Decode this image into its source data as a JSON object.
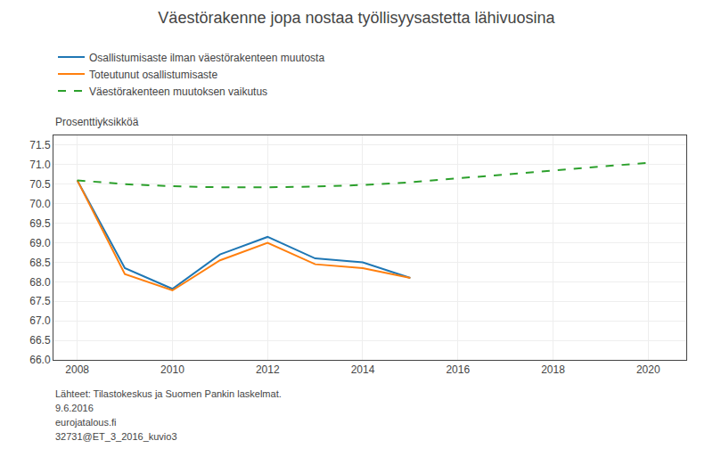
{
  "chart_data": {
    "type": "line",
    "title": "Väestörakenne jopa nostaa työllisyysastetta lähivuosina",
    "y_label": "Prosenttiyksikköä",
    "x": [
      2008,
      2009,
      2010,
      2011,
      2012,
      2013,
      2014,
      2015,
      2016,
      2017,
      2018,
      2019,
      2020
    ],
    "series": [
      {
        "name": "Osallistumisaste ilman väestörakenteen muutosta",
        "line_style": "solid",
        "values": [
          70.6,
          68.35,
          67.82,
          68.7,
          69.15,
          68.6,
          68.5,
          68.1,
          null,
          null,
          null,
          null,
          null
        ]
      },
      {
        "name": "Toteutunut osallistumisaste",
        "line_style": "solid",
        "values": [
          70.6,
          68.2,
          67.78,
          68.55,
          69.0,
          68.45,
          68.35,
          68.1,
          null,
          null,
          null,
          null,
          null
        ]
      },
      {
        "name": "Väestörakenteen muutoksen vaikutus",
        "line_style": "dashed",
        "values": [
          70.6,
          70.5,
          70.45,
          70.42,
          70.42,
          70.44,
          70.48,
          70.55,
          70.65,
          70.75,
          70.85,
          70.95,
          71.05
        ]
      }
    ],
    "xlim": [
      2007.5,
      2020.8
    ],
    "xticks": [
      2008,
      2010,
      2012,
      2014,
      2016,
      2018,
      2020
    ],
    "ylim": [
      66.0,
      71.75
    ],
    "yticks": [
      {
        "value": 66.0,
        "label": "66.0"
      },
      66.5,
      {
        "value": 67.0,
        "label": "67.0"
      },
      67.5,
      {
        "value": 68.0,
        "label": "68.0"
      },
      68.5,
      {
        "value": 69.0,
        "label": "69.0"
      },
      69.5,
      {
        "value": 70.0,
        "label": "70.0"
      },
      70.5,
      {
        "value": 71.0,
        "label": "71.0"
      },
      71.5
    ],
    "grid": true,
    "legend": "upper left",
    "annotations": [
      "Lähteet: Tilastokeskus ja Suomen Pankin laskelmat.",
      "9.6.2016",
      "eurojatalous.fi",
      "32731@ET_3_2016_kuvio3"
    ]
  }
}
